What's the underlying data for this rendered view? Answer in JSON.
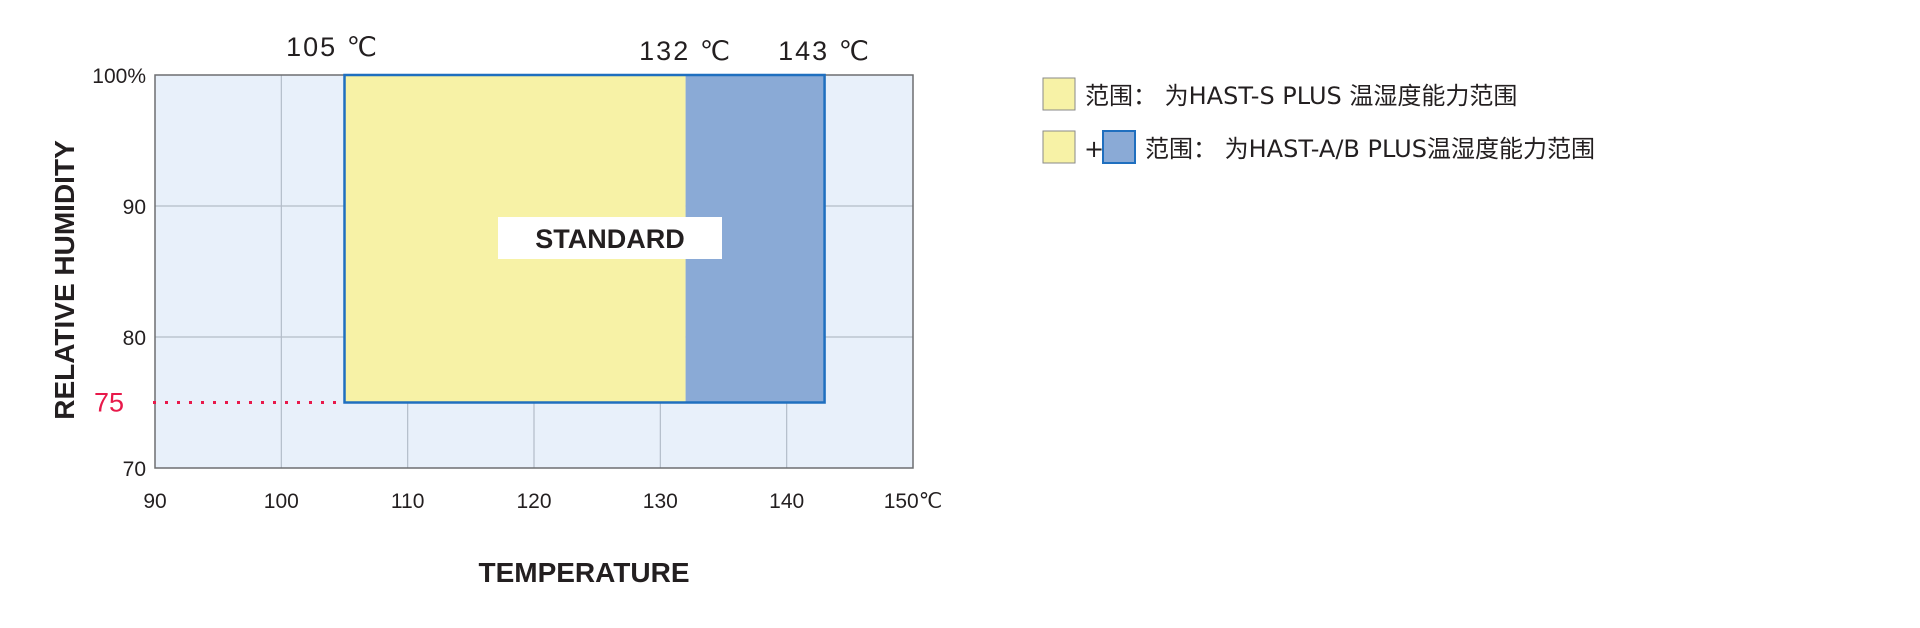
{
  "chart_data": {
    "type": "area",
    "title": "",
    "xlabel": "TEMPERATURE",
    "ylabel": "RELATIVE HUMIDITY",
    "xlim": [
      90,
      150
    ],
    "ylim": [
      70,
      100
    ],
    "x_ticks": [
      "90",
      "100",
      "110",
      "120",
      "130",
      "140",
      "150℃"
    ],
    "x_tick_values": [
      90,
      100,
      110,
      120,
      130,
      140,
      150
    ],
    "y_ticks": [
      "70",
      "80",
      "90",
      "100%"
    ],
    "y_tick_values": [
      70,
      80,
      90,
      100
    ],
    "grid": true,
    "highlight_y": {
      "value": 75,
      "label": "75",
      "color": "#e8194a"
    },
    "top_labels": [
      {
        "value": 105,
        "label": "105 ℃"
      },
      {
        "value": 132,
        "label": "132 ℃"
      },
      {
        "value": 143,
        "label": "143 ℃"
      }
    ],
    "regions": [
      {
        "name": "HAST-S PLUS",
        "x": [
          105,
          132
        ],
        "y": [
          75,
          100
        ],
        "color": "#f7f2a6"
      },
      {
        "name": "HAST-A/B PLUS",
        "x": [
          132,
          143
        ],
        "y": [
          75,
          100
        ],
        "color": "#8aaad6"
      }
    ],
    "outline_color": "#1f6fbf",
    "annotation": "STANDARD",
    "legend": {
      "placement": "right",
      "entries": [
        {
          "text": "范围： 为HAST-S PLUS 温湿度能力范围",
          "swatches": [
            "#f7f2a6"
          ]
        },
        {
          "text": "范围： 为HAST-A/B PLUS温湿度能力范围",
          "swatches": [
            "#f7f2a6",
            "#8aaad6"
          ],
          "joiner": "+"
        }
      ]
    },
    "colors": {
      "plot_bg": "#e8f0fa",
      "grid": "#b3bcc8"
    }
  }
}
